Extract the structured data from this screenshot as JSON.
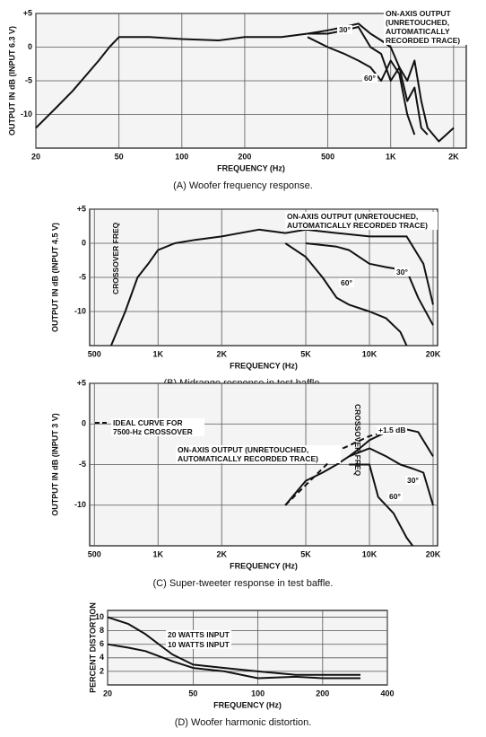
{
  "chart_data": [
    {
      "type": "line",
      "xscale": "log",
      "grid": true,
      "caption": "(A) Woofer frequency response.",
      "xlabel": "FREQUENCY (Hz)",
      "ylabel": "OUTPUT IN dB (INPUT 6.3 V)",
      "xlim": [
        20,
        2300
      ],
      "ylim": [
        -15,
        5
      ],
      "xticks": [
        20,
        50,
        100,
        200,
        500,
        {
          "value": 1000,
          "label": "1K"
        },
        {
          "value": 2000,
          "label": "2K"
        }
      ],
      "yticks": [
        {
          "value": 5,
          "label": "+5"
        },
        0,
        -5,
        -10
      ],
      "series": [
        {
          "name": "ON-AXIS OUTPUT (UNRETOUCHED, AUTOMATICALLY RECORDED TRACE)",
          "color": "#111111",
          "x": [
            20,
            25,
            30,
            40,
            45,
            50,
            70,
            100,
            150,
            200,
            300,
            400,
            500,
            600,
            700,
            800,
            900,
            1000,
            1100,
            1200,
            1300,
            1400,
            1500,
            1700,
            2000
          ],
          "values": [
            -12,
            -9,
            -6.5,
            -2,
            0,
            1.5,
            1.5,
            1.2,
            1,
            1.5,
            1.5,
            2,
            2.5,
            3,
            3.5,
            2,
            1,
            0,
            -3,
            -5,
            -2,
            -8,
            -12,
            -14,
            -12
          ]
        },
        {
          "name": "30°",
          "color": "#111111",
          "x": [
            400,
            500,
            600,
            700,
            800,
            900,
            1000,
            1100,
            1200,
            1300,
            1400,
            1500
          ],
          "values": [
            2,
            2,
            2.5,
            3,
            0,
            -1,
            -5,
            -3,
            -8,
            -6,
            -12,
            -13
          ]
        },
        {
          "name": "60°",
          "color": "#111111",
          "x": [
            400,
            500,
            600,
            700,
            800,
            900,
            1000,
            1100,
            1200,
            1300
          ],
          "values": [
            1.5,
            0,
            -1,
            -2,
            -3,
            -5,
            -2,
            -4,
            -10,
            -13
          ]
        }
      ],
      "annotations": []
    },
    {
      "type": "line",
      "xscale": "log",
      "grid": true,
      "caption": "(B) Midrange response in test baffle.",
      "xlabel": "FREQUENCY (Hz)",
      "ylabel": "OUTPUT IN dB (INPUT 4.5 V)",
      "xlim": [
        475,
        21000
      ],
      "ylim": [
        -15,
        5
      ],
      "xticks": [
        500,
        {
          "value": 1000,
          "label": "1K"
        },
        {
          "value": 2000,
          "label": "2K"
        },
        {
          "value": 5000,
          "label": "5K"
        },
        {
          "value": 10000,
          "label": "10K"
        },
        {
          "value": 20000,
          "label": "20K"
        }
      ],
      "yticks": [
        {
          "value": 5,
          "label": "+5"
        },
        0,
        -5,
        -10
      ],
      "series": [
        {
          "name": "ON-AXIS OUTPUT (UNRETOUCHED, AUTOMATICALLY RECORDED TRACE)",
          "color": "#111111",
          "x": [
            600,
            700,
            800,
            900,
            1000,
            1200,
            1500,
            2000,
            3000,
            4000,
            5000,
            7000,
            10000,
            15000,
            18000,
            20000
          ],
          "values": [
            -15,
            -10,
            -5,
            -3,
            -1,
            0,
            0.5,
            1,
            2,
            1.5,
            2,
            1.5,
            1,
            1,
            -3,
            -9
          ]
        },
        {
          "name": "30°",
          "color": "#111111",
          "x": [
            5000,
            7000,
            8000,
            10000,
            12000,
            15000,
            17000,
            20000
          ],
          "values": [
            0,
            -0.5,
            -1,
            -3,
            -3.5,
            -4,
            -8,
            -12
          ]
        },
        {
          "name": "60°",
          "color": "#111111",
          "x": [
            4000,
            5000,
            6000,
            7000,
            8000,
            10000,
            12000,
            14000,
            15000
          ],
          "values": [
            0,
            -2,
            -5,
            -8,
            -9,
            -10,
            -11,
            -13,
            -15
          ]
        }
      ],
      "annotations": [
        "CROSSOVER FREQ"
      ]
    },
    {
      "type": "line",
      "xscale": "log",
      "grid": true,
      "caption": "(C) Super-tweeter response in test baffle.",
      "xlabel": "FREQUENCY (Hz)",
      "ylabel": "OUTPUT IN dB (INPUT 3 V)",
      "xlim": [
        475,
        21000
      ],
      "ylim": [
        -15,
        5
      ],
      "xticks": [
        500,
        {
          "value": 1000,
          "label": "1K"
        },
        {
          "value": 2000,
          "label": "2K"
        },
        {
          "value": 5000,
          "label": "5K"
        },
        {
          "value": 10000,
          "label": "10K"
        },
        {
          "value": 20000,
          "label": "20K"
        }
      ],
      "yticks": [
        {
          "value": 5,
          "label": "+5"
        },
        0,
        -5,
        -10
      ],
      "series": [
        {
          "name": "IDEAL CURVE FOR 7500-Hz CROSSOVER",
          "color": "#111111",
          "dash": true,
          "x": [
            4000,
            7500,
            10000,
            14000
          ],
          "values": [
            -10,
            -3,
            -1.5,
            -0.5
          ]
        },
        {
          "name": "ON-AXIS OUTPUT (UNRETOUCHED, AUTOMATICALLY RECORDED TRACE)",
          "color": "#111111",
          "x": [
            4000,
            5000,
            6000,
            7000,
            8000,
            9000,
            10000,
            12000,
            14000,
            17000,
            20000
          ],
          "values": [
            -10,
            -7,
            -6,
            -5,
            -4,
            -3,
            -2,
            -1,
            -0.5,
            -1,
            -4
          ]
        },
        {
          "name": "30°",
          "color": "#111111",
          "x": [
            8000,
            10000,
            12000,
            14000,
            16000,
            18000,
            20000
          ],
          "values": [
            -4,
            -3,
            -4,
            -5,
            -5.5,
            -6,
            -10
          ]
        },
        {
          "name": "60°",
          "color": "#111111",
          "x": [
            8000,
            10000,
            11000,
            13000,
            15000,
            16000
          ],
          "values": [
            -5,
            -5,
            -9,
            -11,
            -14,
            -15
          ]
        }
      ],
      "annotations": [
        "CROSSOVER FREQ",
        "+1.5 dB"
      ]
    },
    {
      "type": "line",
      "xscale": "log",
      "grid": true,
      "caption": "(D) Woofer harmonic distortion.",
      "xlabel": "FREQUENCY (Hz)",
      "ylabel": "PERCENT DISTORTION",
      "xlim": [
        20,
        400
      ],
      "ylim": [
        0,
        11
      ],
      "xticks": [
        20,
        50,
        100,
        200,
        400
      ],
      "yticks": [
        2,
        4,
        6,
        8,
        10
      ],
      "series": [
        {
          "name": "20 WATTS INPUT",
          "color": "#111111",
          "x": [
            20,
            25,
            30,
            40,
            50,
            70,
            100,
            150,
            200,
            300
          ],
          "values": [
            10,
            9,
            7.5,
            4.5,
            3,
            2.5,
            2,
            1.5,
            1.5,
            1.5
          ]
        },
        {
          "name": "10 WATTS INPUT",
          "color": "#111111",
          "x": [
            20,
            25,
            30,
            40,
            50,
            70,
            100,
            150,
            200,
            300
          ],
          "values": [
            6,
            5.5,
            5,
            3.5,
            2.5,
            2,
            1,
            1.2,
            1,
            1
          ]
        }
      ],
      "annotations": []
    }
  ]
}
